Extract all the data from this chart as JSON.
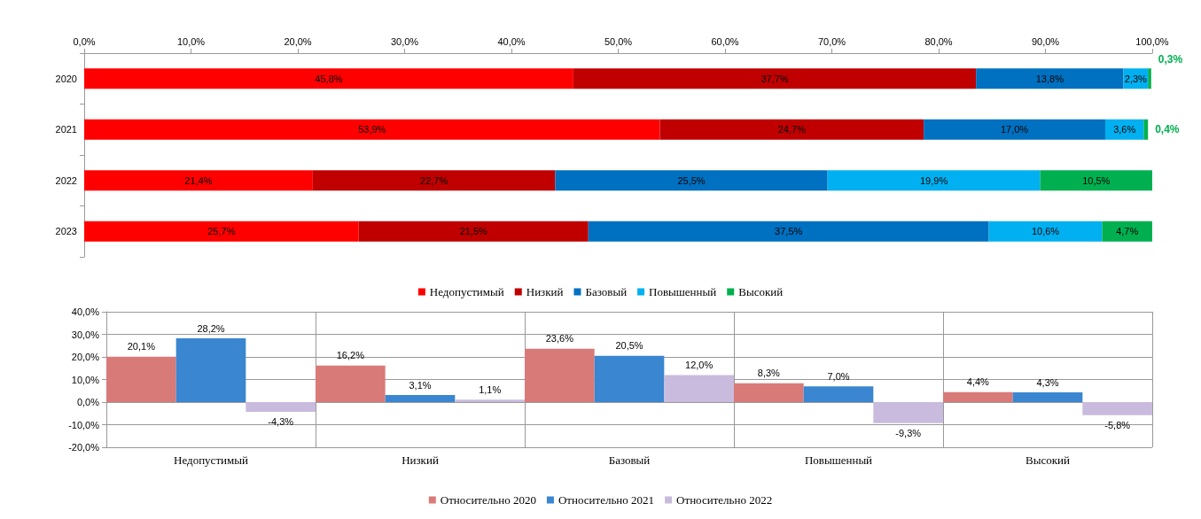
{
  "chart_data": [
    {
      "type": "bar",
      "orientation": "horizontal",
      "stacked": true,
      "categories": [
        "2020",
        "2021",
        "2022",
        "2023"
      ],
      "xlim": [
        0,
        100
      ],
      "xticks": [
        {
          "value": 0,
          "label": "0,0%"
        },
        {
          "value": 10,
          "label": "10,0%"
        },
        {
          "value": 20,
          "label": "20,0%"
        },
        {
          "value": 30,
          "label": "30,0%"
        },
        {
          "value": 40,
          "label": "40,0%"
        },
        {
          "value": 50,
          "label": "50,0%"
        },
        {
          "value": 60,
          "label": "60,0%"
        },
        {
          "value": 70,
          "label": "70,0%"
        },
        {
          "value": 80,
          "label": "80,0%"
        },
        {
          "value": 90,
          "label": "90,0%"
        },
        {
          "value": 100,
          "label": "100,0%"
        }
      ],
      "grid": false,
      "legend": "bottom",
      "series": [
        {
          "name": "Недопустимый",
          "color": "#ff0000",
          "values": [
            45.8,
            53.9,
            21.4,
            25.7
          ],
          "value_labels": [
            "45,8%",
            "53,9%",
            "21,4%",
            "25,7%"
          ]
        },
        {
          "name": "Низкий",
          "color": "#c00000",
          "values": [
            37.7,
            24.7,
            22.7,
            21.5
          ],
          "value_labels": [
            "37,7%",
            "24,7%",
            "22,7%",
            "21,5%"
          ]
        },
        {
          "name": "Базовый",
          "color": "#0070c0",
          "values": [
            13.8,
            17.0,
            25.5,
            37.5
          ],
          "value_labels": [
            "13,8%",
            "17,0%",
            "25,5%",
            "37,5%"
          ]
        },
        {
          "name": "Повышенный",
          "color": "#00b0f0",
          "values": [
            2.3,
            3.6,
            19.9,
            10.6
          ],
          "value_labels": [
            "2,3%",
            "3,6%",
            "19,9%",
            "10,6%"
          ]
        },
        {
          "name": "Высокий",
          "color": "#00b050",
          "values": [
            0.3,
            0.4,
            10.5,
            4.7
          ],
          "value_labels": [
            "0,3%",
            "0,4%",
            "10,5%",
            "4,7%"
          ]
        }
      ]
    },
    {
      "type": "bar",
      "categories": [
        "Недопустимый",
        "Низкий",
        "Базовый",
        "Повышенный",
        "Высокий"
      ],
      "ylim": [
        -20,
        40
      ],
      "yticks": [
        {
          "value": -20,
          "label": "-20,0%"
        },
        {
          "value": -10,
          "label": "-10,0%"
        },
        {
          "value": 0,
          "label": "0,0%"
        },
        {
          "value": 10,
          "label": "10,0%"
        },
        {
          "value": 20,
          "label": "20,0%"
        },
        {
          "value": 30,
          "label": "30,0%"
        },
        {
          "value": 40,
          "label": "40,0%"
        }
      ],
      "grid": true,
      "legend": "bottom",
      "series": [
        {
          "name": "Относительно 2020",
          "color": "#d87a78",
          "values": [
            20.1,
            16.2,
            23.6,
            8.3,
            4.4
          ],
          "value_labels": [
            "20,1%",
            "16,2%",
            "23,6%",
            "8,3%",
            "4,4%"
          ]
        },
        {
          "name": "Относительно 2021",
          "color": "#3a86d0",
          "values": [
            28.2,
            3.1,
            20.5,
            7.0,
            4.3
          ],
          "value_labels": [
            "28,2%",
            "3,1%",
            "20,5%",
            "7,0%",
            "4,3%"
          ]
        },
        {
          "name": "Относительно 2022",
          "color": "#c9bbdd",
          "values": [
            -4.3,
            1.1,
            12.0,
            -9.3,
            -5.8
          ],
          "value_labels": [
            "-4,3%",
            "1,1%",
            "12,0%",
            "-9,3%",
            "-5,8%"
          ]
        }
      ]
    }
  ]
}
